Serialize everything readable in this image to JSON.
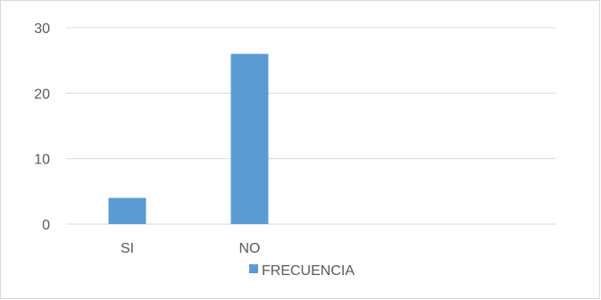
{
  "chart_data": {
    "type": "bar",
    "categories": [
      "SI",
      "NO",
      "",
      ""
    ],
    "series": [
      {
        "name": "FRECUENCIA",
        "values": [
          4,
          26,
          null,
          null
        ],
        "color": "#5b9bd5"
      }
    ],
    "ylim": [
      0,
      30
    ],
    "yticks": [
      0,
      10,
      20,
      30
    ],
    "grid": true,
    "gridColor": "#d9d9d9",
    "legend": "bottom"
  }
}
